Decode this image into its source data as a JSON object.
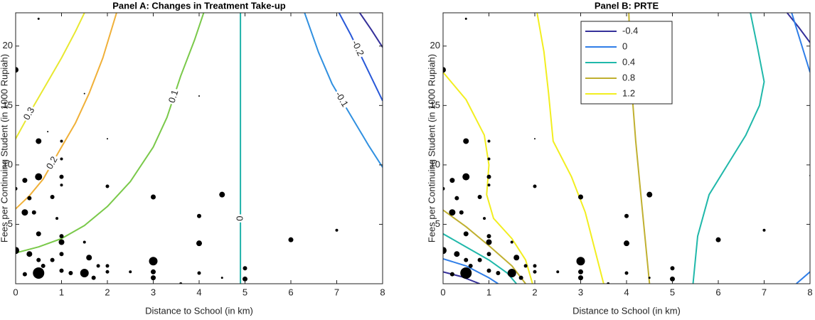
{
  "chart_data": [
    {
      "type": "contour",
      "title": "Panel A: Changes in Treatment Take-up",
      "xlabel": "Distance to School (in km)",
      "ylabel": "Fees per Continuing Student (in 1000 Rupiah)",
      "xlim": [
        0,
        8
      ],
      "ylim": [
        0,
        22.8
      ],
      "xticks": [
        0,
        1,
        2,
        3,
        4,
        5,
        6,
        7,
        8
      ],
      "yticks": [
        5,
        10,
        15,
        20
      ],
      "contours": [
        {
          "name": "0.3",
          "color": "#e8e830",
          "x": [
            0,
            0.2,
            0.4,
            0.7,
            1.0,
            1.3,
            1.5
          ],
          "y": [
            12.2,
            13.6,
            15,
            17,
            19,
            21.2,
            22.8
          ]
        },
        {
          "name": "0.2",
          "color": "#f0b038",
          "x": [
            0,
            0.3,
            0.6,
            1.0,
            1.3,
            1.6,
            1.9,
            2.2
          ],
          "y": [
            6.3,
            7.4,
            8.8,
            11.5,
            13.5,
            16,
            19,
            22.8
          ]
        },
        {
          "name": "0.1",
          "color": "#7ac94a",
          "x": [
            0,
            0.5,
            1.0,
            1.5,
            2.0,
            2.5,
            3.0,
            3.3,
            3.6,
            3.9,
            4.1
          ],
          "y": [
            2.6,
            3.1,
            3.8,
            4.9,
            6.5,
            8.6,
            11.5,
            14,
            17.5,
            20.5,
            22.8
          ]
        },
        {
          "name": "0",
          "color": "#20b2aa",
          "x": [
            4.9,
            4.9,
            4.9
          ],
          "y": [
            0,
            11,
            22.8
          ]
        },
        {
          "name": "-0.1",
          "color": "#3090e0",
          "x": [
            6.3,
            6.6,
            6.9,
            7.3,
            7.7,
            8.0
          ],
          "y": [
            22.8,
            19.5,
            16.8,
            14.2,
            11.6,
            9.8
          ]
        },
        {
          "name": "-0.2",
          "color": "#2858d8",
          "x": [
            7.05,
            7.3,
            7.6,
            8.0
          ],
          "y": [
            22.8,
            21,
            18.6,
            15.4
          ]
        },
        {
          "name": null,
          "color": "#35309a",
          "x": [
            7.5,
            7.75,
            8.0
          ],
          "y": [
            22.8,
            21.4,
            19.9
          ]
        }
      ],
      "points": {
        "x": [
          0.5,
          0,
          0.5,
          1,
          1,
          2,
          0,
          0.2,
          0.5,
          1,
          0.3,
          0.8,
          0.4,
          0.2,
          1,
          2,
          3,
          4.5,
          4,
          0.5,
          0.9,
          1,
          1,
          1.5,
          4,
          6,
          7,
          0,
          0.3,
          0.5,
          0.6,
          0.8,
          1,
          1.6,
          2,
          2,
          3,
          3,
          3,
          0.5,
          1.5,
          0.2,
          1.2,
          1.7,
          2.5,
          4,
          4.5,
          5,
          5,
          3.6,
          1.8,
          1,
          1.5,
          4,
          0.7
        ],
        "y": [
          22.3,
          18,
          12,
          12,
          10.5,
          12.2,
          8,
          8.7,
          9,
          9,
          7.2,
          7.3,
          6,
          6,
          8.3,
          8.2,
          7.3,
          7.5,
          5.7,
          4.2,
          5.5,
          4,
          3.5,
          3.5,
          3.4,
          3.7,
          4.5,
          2.8,
          2.5,
          2,
          1.5,
          2,
          2.5,
          2.2,
          1.5,
          1,
          1.9,
          1,
          0.5,
          0.9,
          0.9,
          0.8,
          0.9,
          0.5,
          1,
          0.9,
          0.5,
          1.3,
          0.4,
          0,
          1.5,
          1.1,
          16,
          15.8,
          12.8
        ],
        "sizes": [
          1.5,
          4,
          4,
          2,
          2,
          1,
          2.5,
          3.5,
          5,
          3,
          3,
          3,
          3,
          4.5,
          2,
          2.5,
          3.5,
          4,
          3,
          3.5,
          2,
          3,
          4,
          2,
          4,
          3.5,
          2,
          5,
          4,
          3,
          3,
          3,
          3,
          4,
          2.5,
          2.5,
          6,
          3.5,
          3.5,
          8,
          6,
          3,
          3,
          3,
          2,
          2.5,
          1.5,
          3,
          3.5,
          2,
          2.5,
          3,
          1,
          1,
          1
        ]
      }
    },
    {
      "type": "contour",
      "title": "Panel B: PRTE",
      "xlabel": "Distance to School (in km)",
      "ylabel": "Fees per Continuing Student (in 1000 Rupiah)",
      "xlim": [
        0,
        8
      ],
      "ylim": [
        0,
        22.8
      ],
      "xticks": [
        0,
        1,
        2,
        3,
        4,
        5,
        6,
        7,
        8
      ],
      "yticks": [
        5,
        10,
        15,
        20
      ],
      "legend": "north",
      "contours": [
        {
          "name": "-0.4",
          "color": "#35309a",
          "x": [
            0,
            0.4,
            0.8,
            null,
            7.5,
            7.75,
            8.0
          ],
          "y": [
            1,
            0.6,
            0,
            null,
            22.8,
            21.6,
            20.3
          ]
        },
        {
          "name": "0",
          "color": "#2f7ee8",
          "x": [
            0,
            0.5,
            1.0,
            1.2,
            null,
            7.6,
            7.8,
            8.0,
            null,
            7.7,
            8.0
          ],
          "y": [
            2.1,
            1.5,
            0.5,
            0,
            null,
            22.8,
            20.3,
            17.8,
            null,
            0,
            1
          ]
        },
        {
          "name": "0.4",
          "color": "#20b8aa",
          "x": [
            0,
            0.5,
            1.0,
            1.4,
            1.6,
            null,
            5.45,
            5.55,
            5.8,
            6.2,
            6.6,
            6.9,
            7.0,
            6.85,
            6.7
          ],
          "y": [
            4.2,
            3.1,
            2,
            0.9,
            0,
            null,
            0,
            4,
            7.5,
            10,
            12.5,
            15,
            17,
            20,
            22.8
          ]
        },
        {
          "name": "0.8",
          "color": "#c0b030",
          "x": [
            0,
            0.5,
            1.0,
            1.5,
            1.8,
            null,
            4.05,
            4.1,
            4.2,
            4.3,
            4.4,
            4.5
          ],
          "y": [
            6.2,
            4.8,
            3.2,
            1.5,
            0,
            null,
            22.8,
            17,
            12,
            8,
            4,
            0
          ]
        },
        {
          "name": "1.2",
          "color": "#f2ee20",
          "x": [
            0,
            0.5,
            0.9,
            1.0,
            0.95,
            1.1,
            1.5,
            1.8,
            1.95,
            null,
            2.05,
            2.2,
            2.3,
            2.4,
            2.8,
            3.1,
            3.3,
            3.5
          ],
          "y": [
            17.8,
            15.5,
            12.5,
            10,
            7.5,
            5.5,
            3.8,
            2,
            0,
            null,
            22.8,
            19.5,
            16,
            12,
            9,
            6,
            3,
            0
          ]
        }
      ],
      "points": {
        "x": [
          0.5,
          0,
          0.5,
          1,
          1,
          2,
          0,
          0.2,
          0.5,
          1,
          0.3,
          0.8,
          0.4,
          0.2,
          1,
          2,
          3,
          4.5,
          4,
          0.5,
          0.9,
          1,
          1,
          1.5,
          4,
          6,
          7,
          0,
          0.3,
          0.5,
          0.6,
          0.8,
          1,
          1.6,
          2,
          2,
          3,
          3,
          3,
          0.5,
          1.5,
          0.2,
          1.2,
          1.7,
          2.5,
          4,
          4.5,
          5,
          5,
          3.6,
          1.8,
          1,
          8
        ],
        "y": [
          22.3,
          18,
          12,
          12,
          10.5,
          12.2,
          8,
          8.7,
          9,
          9,
          7.2,
          7.3,
          6,
          6,
          8.3,
          8.2,
          7.3,
          7.5,
          5.7,
          4.2,
          5.5,
          4,
          3.5,
          3.5,
          3.4,
          3.7,
          4.5,
          2.8,
          2.5,
          2,
          1.5,
          2,
          2.5,
          2.2,
          1.5,
          1,
          1.9,
          1,
          0.5,
          0.9,
          0.9,
          0.8,
          0.9,
          0.5,
          1,
          0.9,
          0.5,
          1.3,
          0.4,
          0,
          1.5,
          1.1,
          9.1
        ],
        "sizes": [
          1.5,
          4,
          4,
          2,
          2,
          1,
          2.5,
          3.5,
          5,
          3,
          3,
          3,
          3,
          4.5,
          2,
          2.5,
          3.5,
          4,
          3,
          3.5,
          2,
          3,
          4,
          2,
          4,
          3.5,
          2,
          5,
          4,
          3,
          3,
          3,
          3,
          4,
          2.5,
          2.5,
          6,
          3.5,
          3.5,
          8,
          6,
          3,
          3,
          3,
          2,
          2.5,
          1.5,
          3,
          3.5,
          2,
          2.5,
          3,
          1
        ]
      }
    }
  ]
}
